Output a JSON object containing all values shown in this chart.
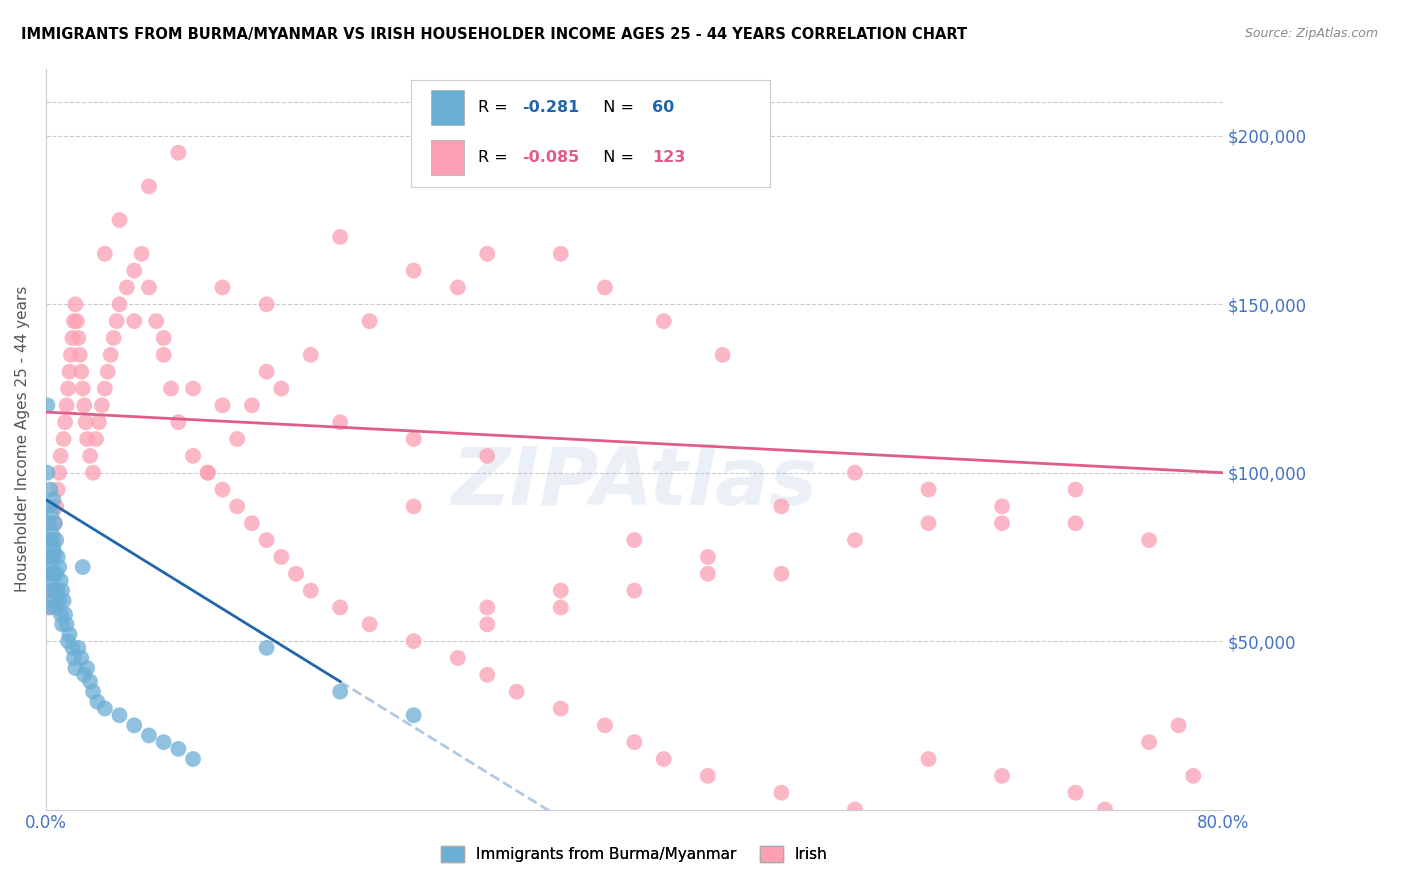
{
  "title": "IMMIGRANTS FROM BURMA/MYANMAR VS IRISH HOUSEHOLDER INCOME AGES 25 - 44 YEARS CORRELATION CHART",
  "source": "Source: ZipAtlas.com",
  "ylabel": "Householder Income Ages 25 - 44 years",
  "yaxis_labels": [
    "$50,000",
    "$100,000",
    "$150,000",
    "$200,000"
  ],
  "yaxis_values": [
    50000,
    100000,
    150000,
    200000
  ],
  "legend_label1": "Immigrants from Burma/Myanmar",
  "legend_label2": "Irish",
  "r1": -0.281,
  "n1": 60,
  "r2": -0.085,
  "n2": 123,
  "blue_color": "#6baed6",
  "pink_color": "#fc9fb3",
  "blue_line_color": "#2166ac",
  "pink_line_color": "#e05c8a",
  "watermark": "ZIPAtlas",
  "xlim": [
    0,
    0.8
  ],
  "ylim": [
    0,
    220000
  ],
  "blue_scatter_x": [
    0.001,
    0.001,
    0.001,
    0.002,
    0.002,
    0.002,
    0.002,
    0.003,
    0.003,
    0.003,
    0.003,
    0.003,
    0.004,
    0.004,
    0.004,
    0.004,
    0.005,
    0.005,
    0.005,
    0.005,
    0.006,
    0.006,
    0.006,
    0.007,
    0.007,
    0.007,
    0.008,
    0.008,
    0.009,
    0.009,
    0.01,
    0.01,
    0.011,
    0.011,
    0.012,
    0.013,
    0.014,
    0.015,
    0.016,
    0.018,
    0.019,
    0.02,
    0.022,
    0.024,
    0.025,
    0.026,
    0.028,
    0.03,
    0.032,
    0.035,
    0.04,
    0.05,
    0.06,
    0.07,
    0.08,
    0.09,
    0.1,
    0.15,
    0.2,
    0.25
  ],
  "blue_scatter_y": [
    120000,
    100000,
    80000,
    90000,
    75000,
    85000,
    70000,
    95000,
    80000,
    72000,
    65000,
    60000,
    88000,
    82000,
    75000,
    68000,
    92000,
    78000,
    70000,
    62000,
    85000,
    76000,
    65000,
    80000,
    70000,
    60000,
    75000,
    65000,
    72000,
    62000,
    68000,
    58000,
    65000,
    55000,
    62000,
    58000,
    55000,
    50000,
    52000,
    48000,
    45000,
    42000,
    48000,
    45000,
    72000,
    40000,
    42000,
    38000,
    35000,
    32000,
    30000,
    28000,
    25000,
    22000,
    20000,
    18000,
    15000,
    48000,
    35000,
    28000
  ],
  "pink_scatter_x": [
    0.001,
    0.002,
    0.003,
    0.004,
    0.005,
    0.006,
    0.007,
    0.008,
    0.009,
    0.01,
    0.012,
    0.013,
    0.014,
    0.015,
    0.016,
    0.017,
    0.018,
    0.019,
    0.02,
    0.021,
    0.022,
    0.023,
    0.024,
    0.025,
    0.026,
    0.027,
    0.028,
    0.03,
    0.032,
    0.034,
    0.036,
    0.038,
    0.04,
    0.042,
    0.044,
    0.046,
    0.048,
    0.05,
    0.055,
    0.06,
    0.065,
    0.07,
    0.075,
    0.08,
    0.085,
    0.09,
    0.1,
    0.11,
    0.12,
    0.13,
    0.14,
    0.15,
    0.16,
    0.17,
    0.18,
    0.2,
    0.22,
    0.25,
    0.28,
    0.3,
    0.32,
    0.35,
    0.38,
    0.4,
    0.42,
    0.45,
    0.5,
    0.55,
    0.6,
    0.65,
    0.7,
    0.72,
    0.75,
    0.77,
    0.78,
    0.4,
    0.45,
    0.5,
    0.3,
    0.35,
    0.25,
    0.6,
    0.5,
    0.7,
    0.65,
    0.55,
    0.45,
    0.4,
    0.35,
    0.3,
    0.55,
    0.6,
    0.65,
    0.7,
    0.75,
    0.25,
    0.3,
    0.2,
    0.15,
    0.12,
    0.1,
    0.08,
    0.06,
    0.15,
    0.12,
    0.25,
    0.3,
    0.2,
    0.35,
    0.28,
    0.22,
    0.18,
    0.16,
    0.14,
    0.13,
    0.11,
    0.09,
    0.07,
    0.05,
    0.04,
    0.38,
    0.42,
    0.46
  ],
  "pink_scatter_y": [
    60000,
    65000,
    70000,
    75000,
    80000,
    85000,
    90000,
    95000,
    100000,
    105000,
    110000,
    115000,
    120000,
    125000,
    130000,
    135000,
    140000,
    145000,
    150000,
    145000,
    140000,
    135000,
    130000,
    125000,
    120000,
    115000,
    110000,
    105000,
    100000,
    110000,
    115000,
    120000,
    125000,
    130000,
    135000,
    140000,
    145000,
    150000,
    155000,
    160000,
    165000,
    155000,
    145000,
    135000,
    125000,
    115000,
    105000,
    100000,
    95000,
    90000,
    85000,
    80000,
    75000,
    70000,
    65000,
    60000,
    55000,
    50000,
    45000,
    40000,
    35000,
    30000,
    25000,
    20000,
    15000,
    10000,
    5000,
    0,
    15000,
    10000,
    5000,
    0,
    20000,
    25000,
    10000,
    80000,
    75000,
    70000,
    60000,
    65000,
    90000,
    85000,
    90000,
    95000,
    85000,
    80000,
    70000,
    65000,
    60000,
    55000,
    100000,
    95000,
    90000,
    85000,
    80000,
    110000,
    105000,
    115000,
    130000,
    120000,
    125000,
    140000,
    145000,
    150000,
    155000,
    160000,
    165000,
    170000,
    165000,
    155000,
    145000,
    135000,
    125000,
    120000,
    110000,
    100000,
    195000,
    185000,
    175000,
    165000,
    155000,
    145000,
    135000
  ]
}
